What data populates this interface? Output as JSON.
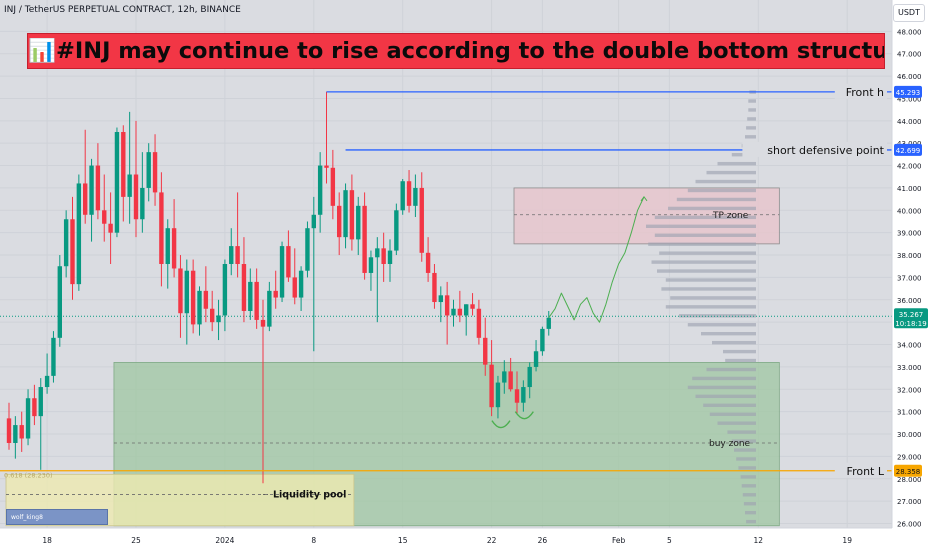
{
  "header": {
    "symbol_line": "INJ / TetherUS PERPETUAL CONTRACT, 12h, BINANCE",
    "currency_button": "USDT"
  },
  "banner": {
    "title": "📊#INJ may continue to rise according to the double bottom structure📈",
    "bg_color": "#f23645"
  },
  "watermark": {
    "text": "wolf_king8"
  },
  "colors": {
    "up": "#089981",
    "down": "#f23645",
    "blue_line": "#2962ff",
    "orange_line": "#f7a600",
    "buy_zone": "#9fc7a2",
    "tp_zone": "#e6c6cd",
    "liquidity": "#eeeab0",
    "volume_profile": "#9ea3b0",
    "forecast": "#4caf50",
    "current_price": "#089981"
  },
  "chart_data": {
    "type": "candlestick",
    "ylim": [
      25.8,
      49.4
    ],
    "price_axis_labels": [
      "48.000",
      "47.000",
      "46.000",
      "45.000",
      "44.000",
      "43.000",
      "42.000",
      "41.000",
      "40.000",
      "39.000",
      "38.000",
      "37.000",
      "36.000",
      "35.000",
      "34.000",
      "33.000",
      "32.000",
      "31.000",
      "30.000",
      "29.000",
      "28.000",
      "27.000",
      "26.000"
    ],
    "time_axis_labels": [
      {
        "label": "18",
        "index": 6
      },
      {
        "label": "25",
        "index": 20
      },
      {
        "label": "2024",
        "index": 34
      },
      {
        "label": "8",
        "index": 48
      },
      {
        "label": "15",
        "index": 62
      },
      {
        "label": "22",
        "index": 76
      },
      {
        "label": "26",
        "index": 84
      },
      {
        "label": "Feb",
        "index": 96
      },
      {
        "label": "5",
        "index": 104
      },
      {
        "label": "12",
        "index": 118
      },
      {
        "label": "19",
        "index": 132
      }
    ],
    "candles": [
      [
        30.7,
        31.4,
        29.3,
        29.6
      ],
      [
        29.6,
        30.8,
        28.9,
        30.4
      ],
      [
        30.4,
        31.0,
        29.2,
        29.8
      ],
      [
        29.8,
        32.0,
        29.5,
        31.6
      ],
      [
        31.6,
        32.2,
        30.4,
        30.8
      ],
      [
        30.8,
        32.5,
        28.4,
        32.1
      ],
      [
        32.1,
        33.6,
        31.8,
        32.6
      ],
      [
        32.6,
        34.6,
        32.3,
        34.3
      ],
      [
        34.3,
        38.0,
        33.9,
        37.5
      ],
      [
        37.5,
        40.0,
        37.0,
        39.6
      ],
      [
        39.6,
        40.6,
        36.0,
        36.7
      ],
      [
        36.7,
        41.6,
        36.4,
        41.2
      ],
      [
        41.2,
        43.6,
        39.4,
        39.8
      ],
      [
        39.8,
        42.3,
        38.6,
        42.0
      ],
      [
        42.0,
        43.0,
        39.6,
        40.0
      ],
      [
        40.0,
        41.6,
        38.6,
        39.4
      ],
      [
        39.4,
        40.8,
        37.6,
        39.0
      ],
      [
        39.0,
        43.7,
        38.8,
        43.5
      ],
      [
        43.5,
        43.8,
        39.5,
        40.6
      ],
      [
        40.6,
        44.4,
        39.4,
        41.6
      ],
      [
        41.6,
        44.0,
        38.8,
        39.6
      ],
      [
        39.6,
        42.6,
        39.0,
        41.0
      ],
      [
        41.0,
        43.0,
        40.4,
        42.6
      ],
      [
        42.6,
        43.4,
        40.2,
        40.8
      ],
      [
        40.8,
        41.7,
        36.6,
        37.6
      ],
      [
        37.6,
        39.6,
        36.5,
        39.2
      ],
      [
        39.2,
        40.5,
        37.0,
        37.4
      ],
      [
        37.4,
        38.0,
        34.3,
        35.4
      ],
      [
        35.4,
        37.8,
        34.0,
        37.3
      ],
      [
        37.3,
        37.8,
        34.5,
        34.9
      ],
      [
        34.9,
        36.6,
        34.4,
        36.4
      ],
      [
        36.4,
        37.5,
        35.0,
        35.6
      ],
      [
        35.6,
        36.4,
        34.6,
        35.0
      ],
      [
        35.0,
        36.0,
        34.2,
        35.3
      ],
      [
        35.3,
        37.8,
        34.6,
        37.6
      ],
      [
        37.6,
        39.2,
        37.1,
        38.4
      ],
      [
        38.4,
        40.8,
        37.0,
        37.6
      ],
      [
        37.6,
        38.8,
        35.0,
        35.5
      ],
      [
        35.5,
        37.4,
        35.1,
        36.8
      ],
      [
        36.8,
        37.4,
        34.7,
        35.1
      ],
      [
        35.1,
        36.0,
        27.8,
        34.8
      ],
      [
        34.8,
        36.8,
        34.6,
        36.4
      ],
      [
        36.4,
        37.3,
        35.6,
        36.1
      ],
      [
        36.1,
        38.6,
        35.9,
        38.4
      ],
      [
        38.4,
        39.1,
        36.8,
        37.0
      ],
      [
        37.0,
        38.3,
        35.8,
        36.1
      ],
      [
        36.1,
        37.5,
        35.5,
        37.3
      ],
      [
        37.3,
        39.5,
        37.0,
        39.2
      ],
      [
        39.2,
        40.6,
        33.7,
        39.8
      ],
      [
        39.8,
        42.6,
        39.0,
        42.0
      ],
      [
        42.0,
        45.3,
        41.2,
        41.9
      ],
      [
        41.9,
        42.7,
        39.6,
        40.2
      ],
      [
        40.2,
        40.8,
        38.0,
        38.8
      ],
      [
        38.8,
        41.2,
        38.3,
        40.9
      ],
      [
        40.9,
        41.6,
        38.2,
        38.7
      ],
      [
        38.7,
        40.6,
        38.0,
        40.2
      ],
      [
        40.2,
        40.8,
        36.9,
        37.2
      ],
      [
        37.2,
        38.2,
        36.4,
        37.9
      ],
      [
        37.9,
        38.8,
        35.0,
        38.3
      ],
      [
        38.3,
        39.0,
        36.8,
        37.6
      ],
      [
        37.6,
        38.7,
        36.8,
        38.2
      ],
      [
        38.2,
        40.3,
        38.0,
        40.0
      ],
      [
        40.0,
        41.4,
        39.8,
        41.3
      ],
      [
        41.3,
        41.8,
        39.9,
        40.2
      ],
      [
        40.2,
        41.6,
        39.7,
        41.0
      ],
      [
        41.0,
        41.7,
        37.7,
        38.1
      ],
      [
        38.1,
        38.8,
        36.8,
        37.2
      ],
      [
        37.2,
        37.6,
        35.6,
        35.9
      ],
      [
        35.9,
        36.6,
        35.0,
        36.2
      ],
      [
        36.2,
        36.8,
        34.0,
        35.3
      ],
      [
        35.3,
        36.0,
        34.8,
        35.6
      ],
      [
        35.6,
        36.4,
        35.0,
        35.3
      ],
      [
        35.3,
        35.8,
        34.4,
        35.8
      ],
      [
        35.8,
        36.3,
        35.3,
        35.6
      ],
      [
        35.6,
        36.0,
        34.0,
        34.3
      ],
      [
        34.3,
        35.2,
        32.6,
        33.1
      ],
      [
        33.1,
        34.2,
        30.8,
        31.2
      ],
      [
        31.2,
        32.6,
        30.7,
        32.3
      ],
      [
        32.3,
        33.3,
        31.8,
        32.8
      ],
      [
        32.8,
        33.4,
        31.9,
        32.0
      ],
      [
        32.0,
        32.8,
        30.9,
        31.4
      ],
      [
        31.4,
        32.4,
        31.0,
        32.1
      ],
      [
        32.1,
        33.2,
        31.6,
        33.0
      ],
      [
        33.0,
        34.2,
        32.8,
        33.7
      ],
      [
        33.7,
        34.8,
        33.5,
        34.7
      ],
      [
        34.7,
        35.5,
        34.4,
        35.2
      ]
    ],
    "current_price": "35.267",
    "countdown": "10:18:19",
    "levels": [
      {
        "price": 45.293,
        "label": "Front h",
        "axis_label": "45.293",
        "color": "blue",
        "start_index": 50
      },
      {
        "price": 42.699,
        "label": "short defensive point",
        "axis_label": "42.699",
        "color": "blue",
        "start_index": 53
      },
      {
        "price": 28.358,
        "label": "Front L",
        "axis_label": "28.358",
        "color": "orange",
        "start_index": 0
      }
    ],
    "fib_label": "0.618 (28.230)",
    "zones": [
      {
        "name": "buy zone",
        "top": 33.2,
        "bottom": 25.9,
        "start_index": 17,
        "end_index": 121,
        "mid": 29.6
      },
      {
        "name": "TP zone",
        "top": 41.0,
        "bottom": 38.5,
        "start_index": 80,
        "end_index": 121,
        "mid": 39.8
      },
      {
        "name": "Liquidity pool",
        "top": 28.2,
        "bottom": 25.9,
        "start_index": 0,
        "end_index": 54,
        "mid": 27.3
      }
    ],
    "projection": [
      [
        85,
        35.2
      ],
      [
        86,
        35.6
      ],
      [
        87,
        36.3
      ],
      [
        88,
        35.7
      ],
      [
        89,
        35.1
      ],
      [
        90,
        35.8
      ],
      [
        91,
        36.1
      ],
      [
        92,
        35.4
      ],
      [
        93,
        35.0
      ],
      [
        94,
        35.8
      ],
      [
        95,
        36.8
      ],
      [
        96,
        37.6
      ],
      [
        97,
        38.1
      ],
      [
        98,
        39.0
      ],
      [
        99,
        40.0
      ],
      [
        100,
        40.6
      ]
    ],
    "volume_profile": [
      {
        "price": 45.2,
        "w": 6
      },
      {
        "price": 44.8,
        "w": 7
      },
      {
        "price": 44.4,
        "w": 7
      },
      {
        "price": 44.0,
        "w": 8
      },
      {
        "price": 43.6,
        "w": 9
      },
      {
        "price": 43.2,
        "w": 10
      },
      {
        "price": 42.8,
        "w": 13
      },
      {
        "price": 42.4,
        "w": 22
      },
      {
        "price": 42.0,
        "w": 35
      },
      {
        "price": 41.6,
        "w": 45
      },
      {
        "price": 41.2,
        "w": 55
      },
      {
        "price": 40.8,
        "w": 62
      },
      {
        "price": 40.4,
        "w": 72
      },
      {
        "price": 40.0,
        "w": 80
      },
      {
        "price": 39.6,
        "w": 92
      },
      {
        "price": 39.2,
        "w": 100
      },
      {
        "price": 38.8,
        "w": 92
      },
      {
        "price": 38.4,
        "w": 98
      },
      {
        "price": 38.0,
        "w": 88
      },
      {
        "price": 37.6,
        "w": 95
      },
      {
        "price": 37.2,
        "w": 90
      },
      {
        "price": 36.8,
        "w": 82
      },
      {
        "price": 36.4,
        "w": 86
      },
      {
        "price": 36.0,
        "w": 78
      },
      {
        "price": 35.6,
        "w": 82
      },
      {
        "price": 35.2,
        "w": 70
      },
      {
        "price": 34.8,
        "w": 62
      },
      {
        "price": 34.4,
        "w": 50
      },
      {
        "price": 34.0,
        "w": 40
      },
      {
        "price": 33.6,
        "w": 30
      },
      {
        "price": 33.2,
        "w": 28
      },
      {
        "price": 32.8,
        "w": 45
      },
      {
        "price": 32.4,
        "w": 58
      },
      {
        "price": 32.0,
        "w": 62
      },
      {
        "price": 31.6,
        "w": 55
      },
      {
        "price": 31.2,
        "w": 48
      },
      {
        "price": 30.8,
        "w": 42
      },
      {
        "price": 30.4,
        "w": 35
      },
      {
        "price": 30.0,
        "w": 26
      },
      {
        "price": 29.6,
        "w": 22
      },
      {
        "price": 29.2,
        "w": 20
      },
      {
        "price": 28.8,
        "w": 18
      },
      {
        "price": 28.4,
        "w": 16
      },
      {
        "price": 28.0,
        "w": 14
      },
      {
        "price": 27.6,
        "w": 13
      },
      {
        "price": 27.2,
        "w": 12
      },
      {
        "price": 26.8,
        "w": 11
      },
      {
        "price": 26.4,
        "w": 10
      },
      {
        "price": 26.0,
        "w": 9
      }
    ]
  }
}
